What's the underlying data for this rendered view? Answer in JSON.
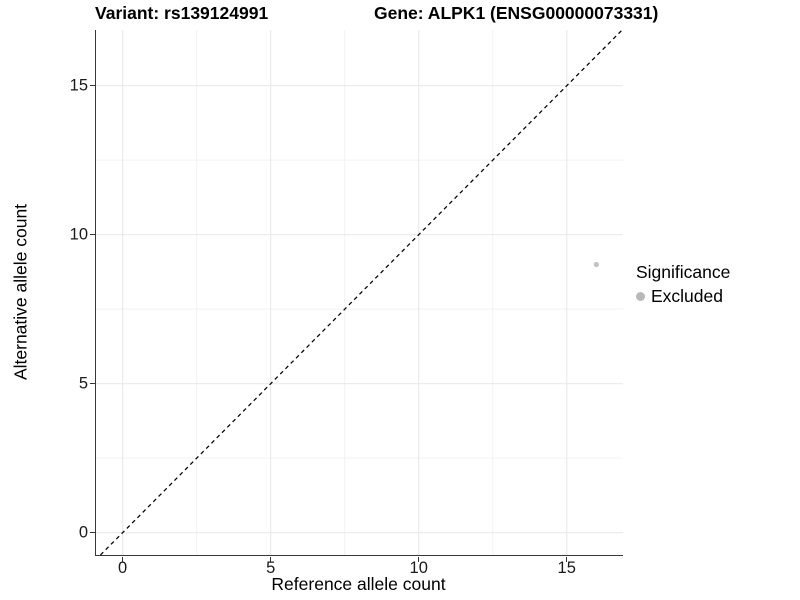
{
  "titles": {
    "variant": "Variant: rs139124991",
    "gene": "Gene: ALPK1 (ENSG00000073331)"
  },
  "axes": {
    "x": {
      "label": "Reference allele count",
      "ticks": [
        {
          "value": 0,
          "label": "0"
        },
        {
          "value": 5,
          "label": "5"
        },
        {
          "value": 10,
          "label": "10"
        },
        {
          "value": 15,
          "label": "15"
        }
      ]
    },
    "y": {
      "label": "Alternative allele count",
      "ticks": [
        {
          "value": 0,
          "label": "0"
        },
        {
          "value": 5,
          "label": "5"
        },
        {
          "value": 10,
          "label": "10"
        },
        {
          "value": 15,
          "label": "15"
        }
      ]
    }
  },
  "legend": {
    "title": "Significance",
    "items": [
      {
        "label": "Excluded",
        "color": "#b8b8b8"
      }
    ]
  },
  "colors": {
    "axis_line": "#383838",
    "major_grid": "#e9e9e9",
    "minor_grid": "#f4f4f4",
    "identity_line": "#000000",
    "point": "#c2c2c2"
  },
  "chart_data": {
    "type": "scatter",
    "title": "Variant: rs139124991 | Gene: ALPK1 (ENSG00000073331)",
    "xlabel": "Reference allele count",
    "ylabel": "Alternative allele count",
    "xlim": [
      -0.9,
      16.9
    ],
    "ylim": [
      -0.75,
      16.87
    ],
    "x_ticks": [
      0,
      5,
      10,
      15
    ],
    "y_ticks": [
      0,
      5,
      10,
      15
    ],
    "grid": "major+minor",
    "legend_position": "right",
    "series": [
      {
        "name": "Excluded",
        "color": "#c2c2c2",
        "points": [
          {
            "x": 16,
            "y": 9
          }
        ]
      }
    ],
    "reference_line": {
      "type": "identity y=x",
      "style": "dashed",
      "color": "#000000"
    }
  }
}
